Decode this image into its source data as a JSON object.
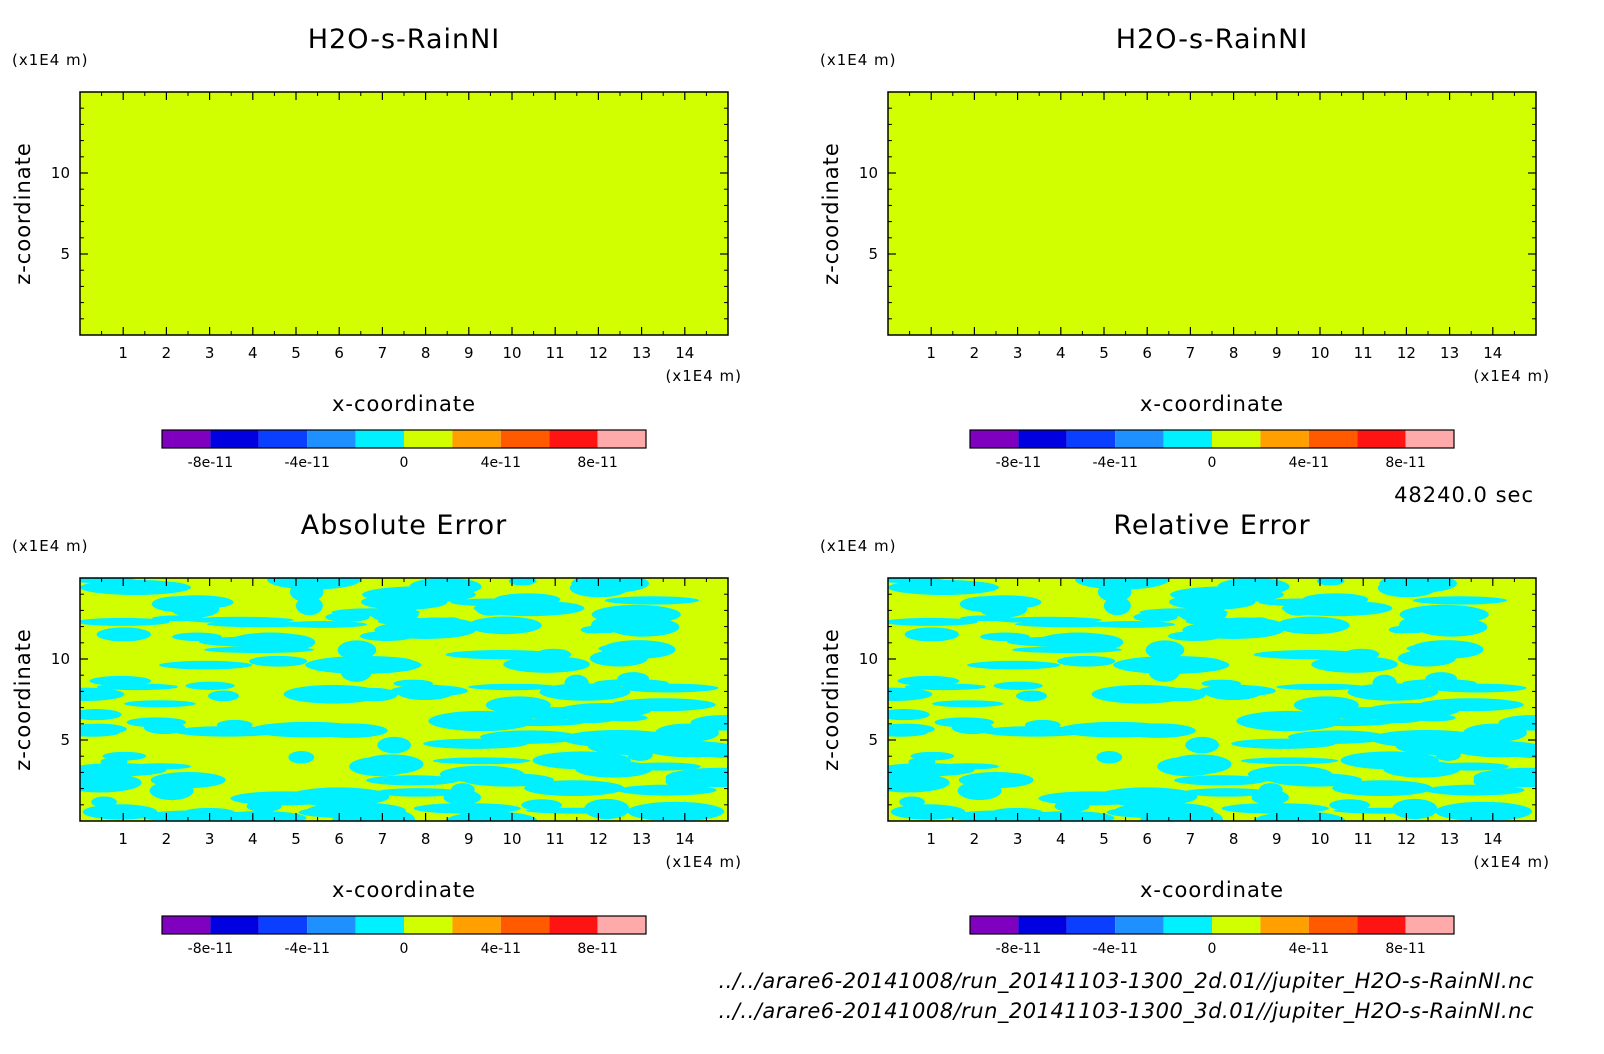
{
  "chart_data": [
    {
      "type": "heatmap",
      "field": "uniform",
      "title": "H2O-s-RainNI",
      "xlabel": "x-coordinate",
      "ylabel": "z-coordinate",
      "x_unit_label": "(x1E4 m)",
      "y_unit_label": "(x1E4 m)",
      "xlim": [
        0,
        15
      ],
      "ylim": [
        0,
        15
      ],
      "xticks": [
        "1",
        "2",
        "3",
        "4",
        "5",
        "6",
        "7",
        "8",
        "9",
        "10",
        "11",
        "12",
        "13",
        "14"
      ],
      "yticks": [
        "5",
        "10"
      ],
      "value": 0
    },
    {
      "type": "heatmap",
      "field": "uniform",
      "title": "H2O-s-RainNI",
      "xlabel": "x-coordinate",
      "ylabel": "z-coordinate",
      "x_unit_label": "(x1E4 m)",
      "y_unit_label": "(x1E4 m)",
      "xlim": [
        0,
        15
      ],
      "ylim": [
        0,
        15
      ],
      "xticks": [
        "1",
        "2",
        "3",
        "4",
        "5",
        "6",
        "7",
        "8",
        "9",
        "10",
        "11",
        "12",
        "13",
        "14"
      ],
      "yticks": [
        "5",
        "10"
      ],
      "value": 0
    },
    {
      "type": "heatmap",
      "field": "noise",
      "title": "Absolute Error",
      "xlabel": "x-coordinate",
      "ylabel": "z-coordinate",
      "x_unit_label": "(x1E4 m)",
      "y_unit_label": "(x1E4 m)",
      "xlim": [
        0,
        15
      ],
      "ylim": [
        0,
        15
      ],
      "xticks": [
        "1",
        "2",
        "3",
        "4",
        "5",
        "6",
        "7",
        "8",
        "9",
        "10",
        "11",
        "12",
        "13",
        "14"
      ],
      "yticks": [
        "5",
        "10"
      ],
      "values_range": [
        -1e-11,
        1e-11
      ]
    },
    {
      "type": "heatmap",
      "field": "noise",
      "title": "Relative Error",
      "xlabel": "x-coordinate",
      "ylabel": "z-coordinate",
      "x_unit_label": "(x1E4 m)",
      "y_unit_label": "(x1E4 m)",
      "xlim": [
        0,
        15
      ],
      "ylim": [
        0,
        15
      ],
      "xticks": [
        "1",
        "2",
        "3",
        "4",
        "5",
        "6",
        "7",
        "8",
        "9",
        "10",
        "11",
        "12",
        "13",
        "14"
      ],
      "yticks": [
        "5",
        "10"
      ],
      "values_range": [
        -1e-11,
        1e-11
      ]
    }
  ],
  "colorbar": {
    "levels": [
      -1e-10,
      -8e-11,
      -6e-11,
      -4e-11,
      -2e-11,
      0,
      2e-11,
      4e-11,
      6e-11,
      8e-11,
      1e-10
    ],
    "colors": [
      "#7f00bf",
      "#0000e0",
      "#0a3fff",
      "#1e90ff",
      "#00f0ff",
      "#d2ff00",
      "#ffa000",
      "#ff5a00",
      "#ff1414",
      "#ffaaaa"
    ],
    "labels": [
      "-8e-11",
      "-4e-11",
      "0",
      "4e-11",
      "8e-11"
    ]
  },
  "time_label": "48240.0 sec",
  "files": [
    "../../arare6-20141008/run_20141103-1300_2d.01//jupiter_H2O-s-RainNI.nc",
    "../../arare6-20141008/run_20141103-1300_3d.01//jupiter_H2O-s-RainNI.nc"
  ]
}
